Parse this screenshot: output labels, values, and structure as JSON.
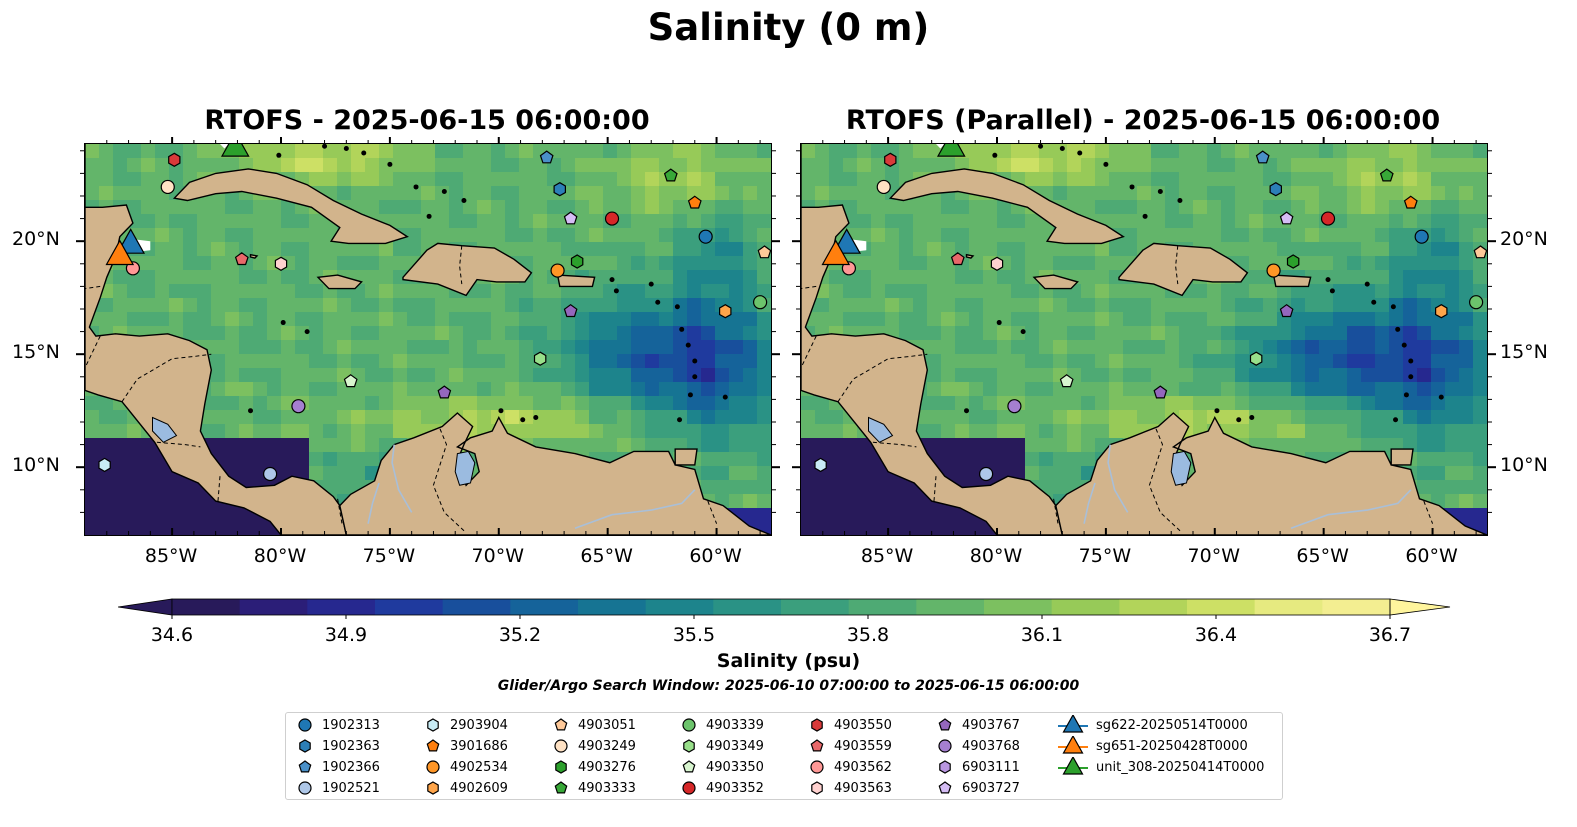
{
  "suptitle": "Salinity (0 m)",
  "panels": [
    {
      "title": "RTOFS - 2025-06-15 06:00:00",
      "variant": "rtofs"
    },
    {
      "title": "RTOFS (Parallel) - 2025-06-15 06:00:00",
      "variant": "parallel"
    }
  ],
  "x_ticks": [
    "85°W",
    "80°W",
    "75°W",
    "70°W",
    "65°W",
    "60°W"
  ],
  "y_ticks": [
    "20°N",
    "15°N",
    "10°N"
  ],
  "colorbar": {
    "ticks": [
      "34.6",
      "34.9",
      "35.2",
      "35.5",
      "35.8",
      "36.1",
      "36.4",
      "36.7"
    ],
    "label": "Salinity (psu)",
    "colors": [
      "#281a5a",
      "#2b1e78",
      "#26288f",
      "#1f3a9e",
      "#184f9c",
      "#15639a",
      "#167493",
      "#1d848c",
      "#2a9285",
      "#3b9f7d",
      "#4eaa74",
      "#63b56a",
      "#7cc060",
      "#97ca58",
      "#b2d45a",
      "#cde065",
      "#e6ea80",
      "#f3ee91"
    ]
  },
  "search_window": "Glider/Argo Search Window: 2025-06-10 07:00:00 to 2025-06-15 06:00:00",
  "colors": {
    "land": "#d2b48c",
    "lake": "#9bbbe0",
    "ocean_mid": "#5fb56c"
  },
  "legend_columns": [
    [
      {
        "label": "1902313",
        "marker": "circle",
        "color": "#1f77b4"
      },
      {
        "label": "1902363",
        "marker": "hexagon",
        "color": "#2c7fb8"
      },
      {
        "label": "1902366",
        "marker": "pentagon",
        "color": "#4a90c8"
      },
      {
        "label": "1902521",
        "marker": "circle",
        "color": "#aec7e8"
      }
    ],
    [
      {
        "label": "2903904",
        "marker": "hexagon",
        "color": "#c8ecf5"
      },
      {
        "label": "3901686",
        "marker": "pentagon",
        "color": "#ff7f0e"
      },
      {
        "label": "4902534",
        "marker": "circle",
        "color": "#ff9626"
      },
      {
        "label": "4902609",
        "marker": "hexagon",
        "color": "#ffa54a"
      }
    ],
    [
      {
        "label": "4903051",
        "marker": "pentagon",
        "color": "#ffc999"
      },
      {
        "label": "4903249",
        "marker": "circle",
        "color": "#ffe2c4"
      },
      {
        "label": "4903276",
        "marker": "hexagon",
        "color": "#2ca02c"
      },
      {
        "label": "4903333",
        "marker": "pentagon",
        "color": "#38a838"
      }
    ],
    [
      {
        "label": "4903339",
        "marker": "circle",
        "color": "#6cc46c"
      },
      {
        "label": "4903349",
        "marker": "hexagon",
        "color": "#98df8a"
      },
      {
        "label": "4903350",
        "marker": "pentagon",
        "color": "#d8f5cf"
      },
      {
        "label": "4903352",
        "marker": "circle",
        "color": "#d62728"
      }
    ],
    [
      {
        "label": "4903550",
        "marker": "hexagon",
        "color": "#d93a3a"
      },
      {
        "label": "4903559",
        "marker": "pentagon",
        "color": "#e8686a"
      },
      {
        "label": "4903562",
        "marker": "circle",
        "color": "#ff9896"
      },
      {
        "label": "4903563",
        "marker": "hexagon",
        "color": "#ffd1cf"
      }
    ],
    [
      {
        "label": "4903767",
        "marker": "pentagon",
        "color": "#9467bd"
      },
      {
        "label": "4903768",
        "marker": "circle",
        "color": "#a57fd0"
      },
      {
        "label": "6903111",
        "marker": "hexagon",
        "color": "#b996e0"
      },
      {
        "label": "6903727",
        "marker": "pentagon",
        "color": "#d5bdf5"
      }
    ],
    [
      {
        "label": "sg622-20250514T0000",
        "marker": "triangle",
        "color": "#1f77b4"
      },
      {
        "label": "sg651-20250428T0000",
        "marker": "triangle",
        "color": "#ff7f0e"
      },
      {
        "label": "unit_308-20250414T0000",
        "marker": "triangle",
        "color": "#2ca02c"
      }
    ]
  ]
}
